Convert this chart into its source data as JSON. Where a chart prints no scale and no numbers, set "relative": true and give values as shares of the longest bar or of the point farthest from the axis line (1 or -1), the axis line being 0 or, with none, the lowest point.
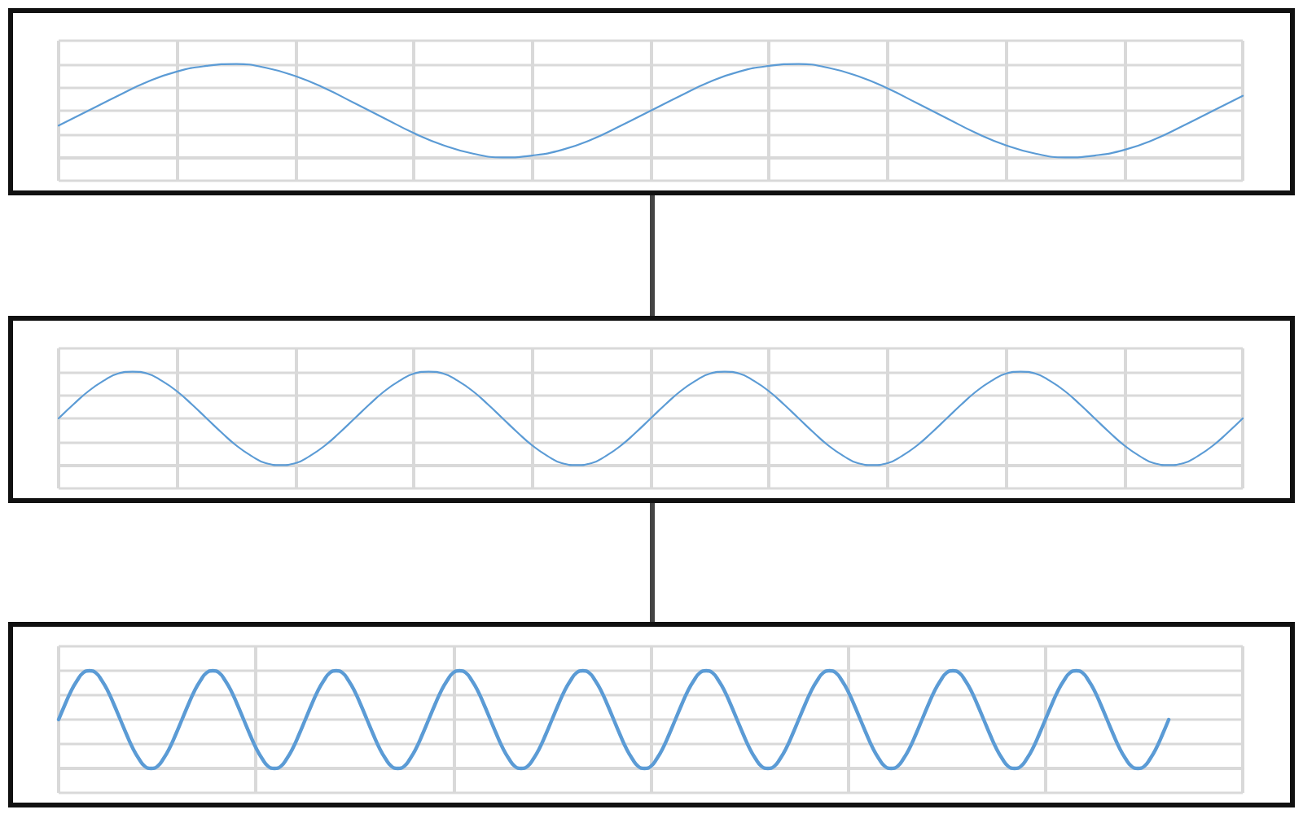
{
  "chart_data": [
    {
      "type": "line",
      "relative": true,
      "grid": true,
      "marker": "none",
      "line_style": "solid",
      "tick_labels": false,
      "color": "#5b9bd5",
      "categories": [
        null,
        null,
        null,
        null,
        null,
        null,
        null,
        null,
        null,
        null,
        null,
        null,
        null,
        null,
        null,
        null,
        null,
        null,
        null,
        null,
        null,
        null,
        null,
        null,
        null,
        null,
        null,
        null,
        null,
        null,
        null,
        null,
        null,
        null,
        null,
        null,
        null,
        null,
        null,
        null,
        null
      ],
      "values": [
        0.34,
        0.5,
        0.66,
        0.81,
        0.92,
        0.98,
        1,
        0.96,
        0.87,
        0.74,
        0.58,
        0.42,
        0.26,
        0.13,
        0.04,
        0,
        0.02,
        0.08,
        0.19,
        0.34,
        0.5,
        0.66,
        0.81,
        0.92,
        0.98,
        1,
        0.96,
        0.87,
        0.74,
        0.58,
        0.42,
        0.26,
        0.13,
        0.04,
        0,
        0.02,
        0.08,
        0.19,
        0.34,
        0.5,
        0.66
      ]
    },
    {
      "type": "line",
      "relative": true,
      "grid": true,
      "marker": "none",
      "line_style": "solid",
      "tick_labels": false,
      "color": "#5b9bd5",
      "categories": [
        null,
        null,
        null,
        null,
        null,
        null,
        null,
        null,
        null,
        null,
        null,
        null,
        null,
        null,
        null,
        null,
        null,
        null,
        null,
        null,
        null,
        null,
        null,
        null,
        null,
        null,
        null,
        null,
        null,
        null,
        null,
        null,
        null,
        null,
        null,
        null,
        null,
        null,
        null,
        null,
        null,
        null,
        null,
        null,
        null,
        null,
        null,
        null,
        null,
        null,
        null,
        null,
        null,
        null,
        null,
        null,
        null,
        null,
        null,
        null,
        null,
        null,
        null,
        null,
        null,
        null,
        null,
        null,
        null,
        null,
        null,
        null,
        null,
        null,
        null,
        null,
        null,
        null,
        null,
        null,
        null
      ],
      "values": [
        0.5,
        0.65,
        0.79,
        0.9,
        0.98,
        1,
        0.98,
        0.9,
        0.79,
        0.65,
        0.5,
        0.35,
        0.21,
        0.1,
        0.02,
        0,
        0.02,
        0.1,
        0.21,
        0.35,
        0.5,
        0.65,
        0.79,
        0.9,
        0.98,
        1,
        0.98,
        0.9,
        0.79,
        0.65,
        0.5,
        0.35,
        0.21,
        0.1,
        0.02,
        0,
        0.02,
        0.1,
        0.21,
        0.35,
        0.5,
        0.65,
        0.79,
        0.9,
        0.98,
        1,
        0.98,
        0.9,
        0.79,
        0.65,
        0.5,
        0.35,
        0.21,
        0.1,
        0.02,
        0,
        0.02,
        0.1,
        0.21,
        0.35,
        0.5,
        0.65,
        0.79,
        0.9,
        0.98,
        1,
        0.98,
        0.9,
        0.79,
        0.65,
        0.5,
        0.35,
        0.21,
        0.1,
        0.02,
        0,
        0.02,
        0.1,
        0.21,
        0.35,
        0.5
      ]
    },
    {
      "type": "line",
      "relative": true,
      "grid": true,
      "marker": "none",
      "line_style": "solid",
      "tick_labels": false,
      "color": "#5b9bd5",
      "categories": [
        null,
        null,
        null,
        null,
        null,
        null,
        null,
        null,
        null,
        null,
        null,
        null,
        null,
        null,
        null,
        null,
        null,
        null,
        null,
        null,
        null,
        null,
        null,
        null,
        null,
        null,
        null,
        null,
        null,
        null,
        null,
        null,
        null,
        null,
        null,
        null,
        null,
        null,
        null,
        null,
        null,
        null,
        null,
        null,
        null,
        null,
        null,
        null,
        null,
        null,
        null,
        null,
        null,
        null,
        null,
        null,
        null,
        null,
        null,
        null,
        null,
        null,
        null,
        null,
        null,
        null,
        null,
        null,
        null,
        null,
        null,
        null,
        null,
        null,
        null,
        null,
        null,
        null,
        null,
        null,
        null,
        null,
        null,
        null,
        null,
        null,
        null,
        null,
        null,
        null,
        null,
        null,
        null,
        null,
        null,
        null,
        null,
        null,
        null,
        null,
        null,
        null,
        null,
        null,
        null,
        null,
        null,
        null,
        null,
        null,
        null,
        null,
        null,
        null,
        null,
        null,
        null,
        null,
        null,
        null,
        null,
        null,
        null,
        null,
        null,
        null,
        null,
        null,
        null,
        null,
        null,
        null,
        null,
        null,
        null,
        null,
        null,
        null,
        null,
        null,
        null,
        null,
        null,
        null,
        null,
        null,
        null,
        null,
        null,
        null,
        null,
        null,
        null,
        null,
        null,
        null,
        null,
        null,
        null,
        null,
        null,
        null,
        null,
        null,
        null,
        null,
        null,
        null,
        null,
        null,
        null,
        null,
        null,
        null,
        null,
        null,
        null,
        null,
        null,
        null,
        null,
        null,
        null,
        null,
        null,
        null,
        null,
        null,
        null,
        null,
        null,
        null,
        null
      ],
      "values": [
        0.5,
        0.65,
        0.79,
        0.9,
        0.98,
        1,
        0.98,
        0.9,
        0.79,
        0.65,
        0.5,
        0.35,
        0.21,
        0.1,
        0.02,
        0,
        0.02,
        0.1,
        0.21,
        0.35,
        0.5,
        0.65,
        0.79,
        0.9,
        0.98,
        1,
        0.98,
        0.9,
        0.79,
        0.65,
        0.5,
        0.35,
        0.21,
        0.1,
        0.02,
        0,
        0.02,
        0.1,
        0.21,
        0.35,
        0.5,
        0.65,
        0.79,
        0.9,
        0.98,
        1,
        0.98,
        0.9,
        0.79,
        0.65,
        0.5,
        0.35,
        0.21,
        0.1,
        0.02,
        0,
        0.02,
        0.1,
        0.21,
        0.35,
        0.5,
        0.65,
        0.79,
        0.9,
        0.98,
        1,
        0.98,
        0.9,
        0.79,
        0.65,
        0.5,
        0.35,
        0.21,
        0.1,
        0.02,
        0,
        0.02,
        0.1,
        0.21,
        0.35,
        0.5,
        0.65,
        0.79,
        0.9,
        0.98,
        1,
        0.98,
        0.9,
        0.79,
        0.65,
        0.5,
        0.35,
        0.21,
        0.1,
        0.02,
        0,
        0.02,
        0.1,
        0.21,
        0.35,
        0.5,
        0.65,
        0.79,
        0.9,
        0.98,
        1,
        0.98,
        0.9,
        0.79,
        0.65,
        0.5,
        0.35,
        0.21,
        0.1,
        0.02,
        0,
        0.02,
        0.1,
        0.21,
        0.35,
        0.5,
        0.65,
        0.79,
        0.9,
        0.98,
        1,
        0.98,
        0.9,
        0.79,
        0.65,
        0.5,
        0.35,
        0.21,
        0.1,
        0.02,
        0,
        0.02,
        0.1,
        0.21,
        0.35,
        0.5,
        0.65,
        0.79,
        0.9,
        0.98,
        1,
        0.98,
        0.9,
        0.79,
        0.65,
        0.5,
        0.35,
        0.21,
        0.1,
        0.02,
        0,
        0.02,
        0.1,
        0.21,
        0.35,
        0.5,
        0.65,
        0.79,
        0.9,
        0.98,
        1,
        0.98,
        0.9,
        0.79,
        0.65,
        0.5,
        0.35,
        0.21,
        0.1,
        0.02,
        0,
        0.02,
        0.1,
        0.21,
        0.35,
        0.5,
        null,
        null,
        null,
        null,
        null,
        null,
        null,
        null,
        null,
        null,
        null,
        null
      ]
    }
  ]
}
